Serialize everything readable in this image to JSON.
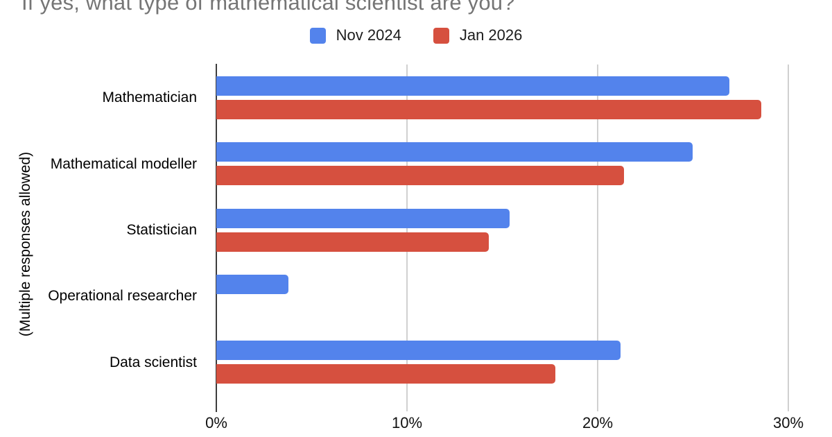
{
  "chart_data": {
    "type": "bar",
    "orientation": "horizontal",
    "title": "If yes, what type of mathematical scientist are you?",
    "ylabel": "(Multiple responses allowed)",
    "xlabel": "",
    "categories": [
      "Mathematician",
      "Mathematical modeller",
      "Statistician",
      "Operational researcher",
      "Data scientist"
    ],
    "series": [
      {
        "name": "Nov 2024",
        "color": "#5383ec",
        "values": [
          26.9,
          25.0,
          15.4,
          3.8,
          21.2
        ]
      },
      {
        "name": "Jan 2026",
        "color": "#d6503f",
        "values": [
          28.6,
          21.4,
          14.3,
          0,
          17.8
        ]
      }
    ],
    "x_ticks": [
      {
        "value": 0,
        "label": "0%"
      },
      {
        "value": 10,
        "label": "10%"
      },
      {
        "value": 20,
        "label": "20%"
      },
      {
        "value": 30,
        "label": "30%"
      }
    ],
    "xlim": [
      0,
      32.3
    ],
    "grid": true,
    "legend_position": "top",
    "colors": {
      "title_text": "#757575",
      "axis_text": "#111111",
      "category_text": "#000000",
      "gridline": "#d0d0d0",
      "axis_line": "#3d3d3d",
      "background": "#ffffff"
    }
  }
}
